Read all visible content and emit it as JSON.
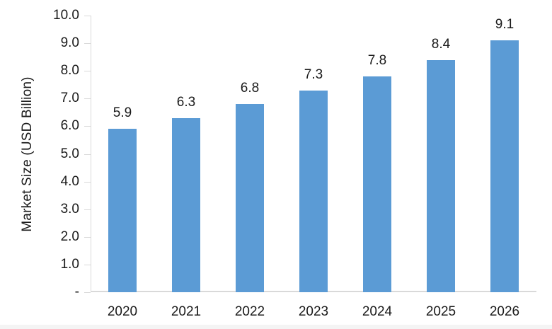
{
  "chart_data": {
    "type": "bar",
    "title": "",
    "categories": [
      "2020",
      "2021",
      "2022",
      "2023",
      "2024",
      "2025",
      "2026"
    ],
    "values": [
      5.9,
      6.3,
      6.8,
      7.3,
      7.8,
      8.4,
      9.1
    ],
    "bar_labels": [
      "5.9",
      "6.3",
      "6.8",
      "7.3",
      "7.8",
      "8.4",
      "9.1"
    ],
    "xlabel": "",
    "ylabel": "Market Size (USD Billion)",
    "ylim": [
      0,
      10
    ],
    "y_tick_step": 1,
    "y_tick_labels": [
      "-",
      "1.0",
      "2.0",
      "3.0",
      "4.0",
      "5.0",
      "6.0",
      "7.0",
      "8.0",
      "9.0",
      "10.0"
    ],
    "grid": "off",
    "legend": "none",
    "colors": {
      "bar": "#5B9BD5",
      "axis_line": "#D9D9D9",
      "text": "#1A1A1A",
      "background": "#FFFFFF"
    }
  }
}
